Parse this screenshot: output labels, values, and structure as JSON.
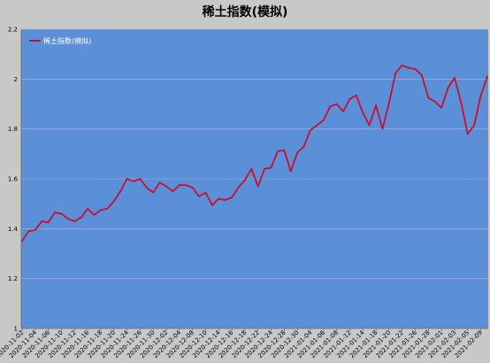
{
  "chart_data": {
    "type": "line",
    "title": "稀土指数(模拟)",
    "xlabel": "",
    "ylabel": "",
    "ylim": [
      1,
      2.2
    ],
    "yticks": [
      1,
      1.2,
      1.4,
      1.6,
      1.8,
      2,
      2.2
    ],
    "ytick_labels": [
      "1",
      "1.2",
      "1.4",
      "1.6",
      "1.8",
      "2",
      "2.2"
    ],
    "grid": true,
    "legend": "top-left",
    "background_color": "#5b8fd8",
    "line_color": "#c8102e",
    "x": [
      "2020-11-02",
      "2020-11-03",
      "2020-11-04",
      "2020-11-05",
      "2020-11-06",
      "2020-11-09",
      "2020-11-10",
      "2020-11-11",
      "2020-11-12",
      "2020-11-13",
      "2020-11-16",
      "2020-11-17",
      "2020-11-18",
      "2020-11-19",
      "2020-11-20",
      "2020-11-23",
      "2020-11-24",
      "2020-11-25",
      "2020-11-26",
      "2020-11-27",
      "2020-11-30",
      "2020-12-01",
      "2020-12-02",
      "2020-12-03",
      "2020-12-04",
      "2020-12-07",
      "2020-12-08",
      "2020-12-09",
      "2020-12-10",
      "2020-12-11",
      "2020-12-14",
      "2020-12-15",
      "2020-12-16",
      "2020-12-17",
      "2020-12-18",
      "2020-12-21",
      "2020-12-22",
      "2020-12-23",
      "2020-12-24",
      "2020-12-25",
      "2020-12-28",
      "2020-12-29",
      "2020-12-30",
      "2020-12-31",
      "2021-01-04",
      "2021-01-05",
      "2021-01-06",
      "2021-01-07",
      "2021-01-08",
      "2021-01-11",
      "2021-01-12",
      "2021-01-13",
      "2021-01-14",
      "2021-01-15",
      "2021-01-18",
      "2021-01-19",
      "2021-01-20",
      "2021-01-21",
      "2021-01-22",
      "2021-01-25",
      "2021-01-26",
      "2021-01-27",
      "2021-01-28",
      "2021-01-29",
      "2021-02-01",
      "2021-02-02",
      "2021-02-03",
      "2021-02-04",
      "2021-02-05",
      "2021-02-08",
      "2021-02-09",
      "2021-02-10"
    ],
    "xtick_labels": [
      "2020-11-02",
      "2020-11-04",
      "2020-11-06",
      "2020-11-10",
      "2020-11-12",
      "2020-11-16",
      "2020-11-18",
      "2020-11-20",
      "2020-11-24",
      "2020-11-26",
      "2020-11-30",
      "2020-12-02",
      "2020-12-04",
      "2020-12-08",
      "2020-12-10",
      "2020-12-14",
      "2020-12-16",
      "2020-12-18",
      "2020-12-22",
      "2020-12-24",
      "2020-12-28",
      "2020-12-30",
      "2021-01-04",
      "2021-01-06",
      "2021-01-08",
      "2021-01-12",
      "2021-01-14",
      "2021-01-18",
      "2021-01-20",
      "2021-01-22",
      "2021-01-26",
      "2021-01-28",
      "2021-02-01",
      "2021-02-03",
      "2021-02-05",
      "2021-02-09"
    ],
    "series": [
      {
        "name": "稀土指数(模拟)",
        "values": [
          1.35,
          1.39,
          1.395,
          1.43,
          1.425,
          1.465,
          1.46,
          1.44,
          1.43,
          1.445,
          1.48,
          1.455,
          1.475,
          1.48,
          1.51,
          1.55,
          1.6,
          1.59,
          1.6,
          1.565,
          1.545,
          1.585,
          1.57,
          1.55,
          1.575,
          1.575,
          1.565,
          1.53,
          1.545,
          1.495,
          1.52,
          1.515,
          1.525,
          1.565,
          1.595,
          1.64,
          1.57,
          1.64,
          1.645,
          1.71,
          1.715,
          1.63,
          1.705,
          1.73,
          1.795,
          1.815,
          1.835,
          1.89,
          1.9,
          1.87,
          1.92,
          1.935,
          1.865,
          1.815,
          1.895,
          1.8,
          1.905,
          2.025,
          2.055,
          2.045,
          2.04,
          2.015,
          1.925,
          1.91,
          1.885,
          1.965,
          2.005,
          1.905,
          1.78,
          1.815,
          1.935,
          2.01
        ]
      }
    ]
  }
}
